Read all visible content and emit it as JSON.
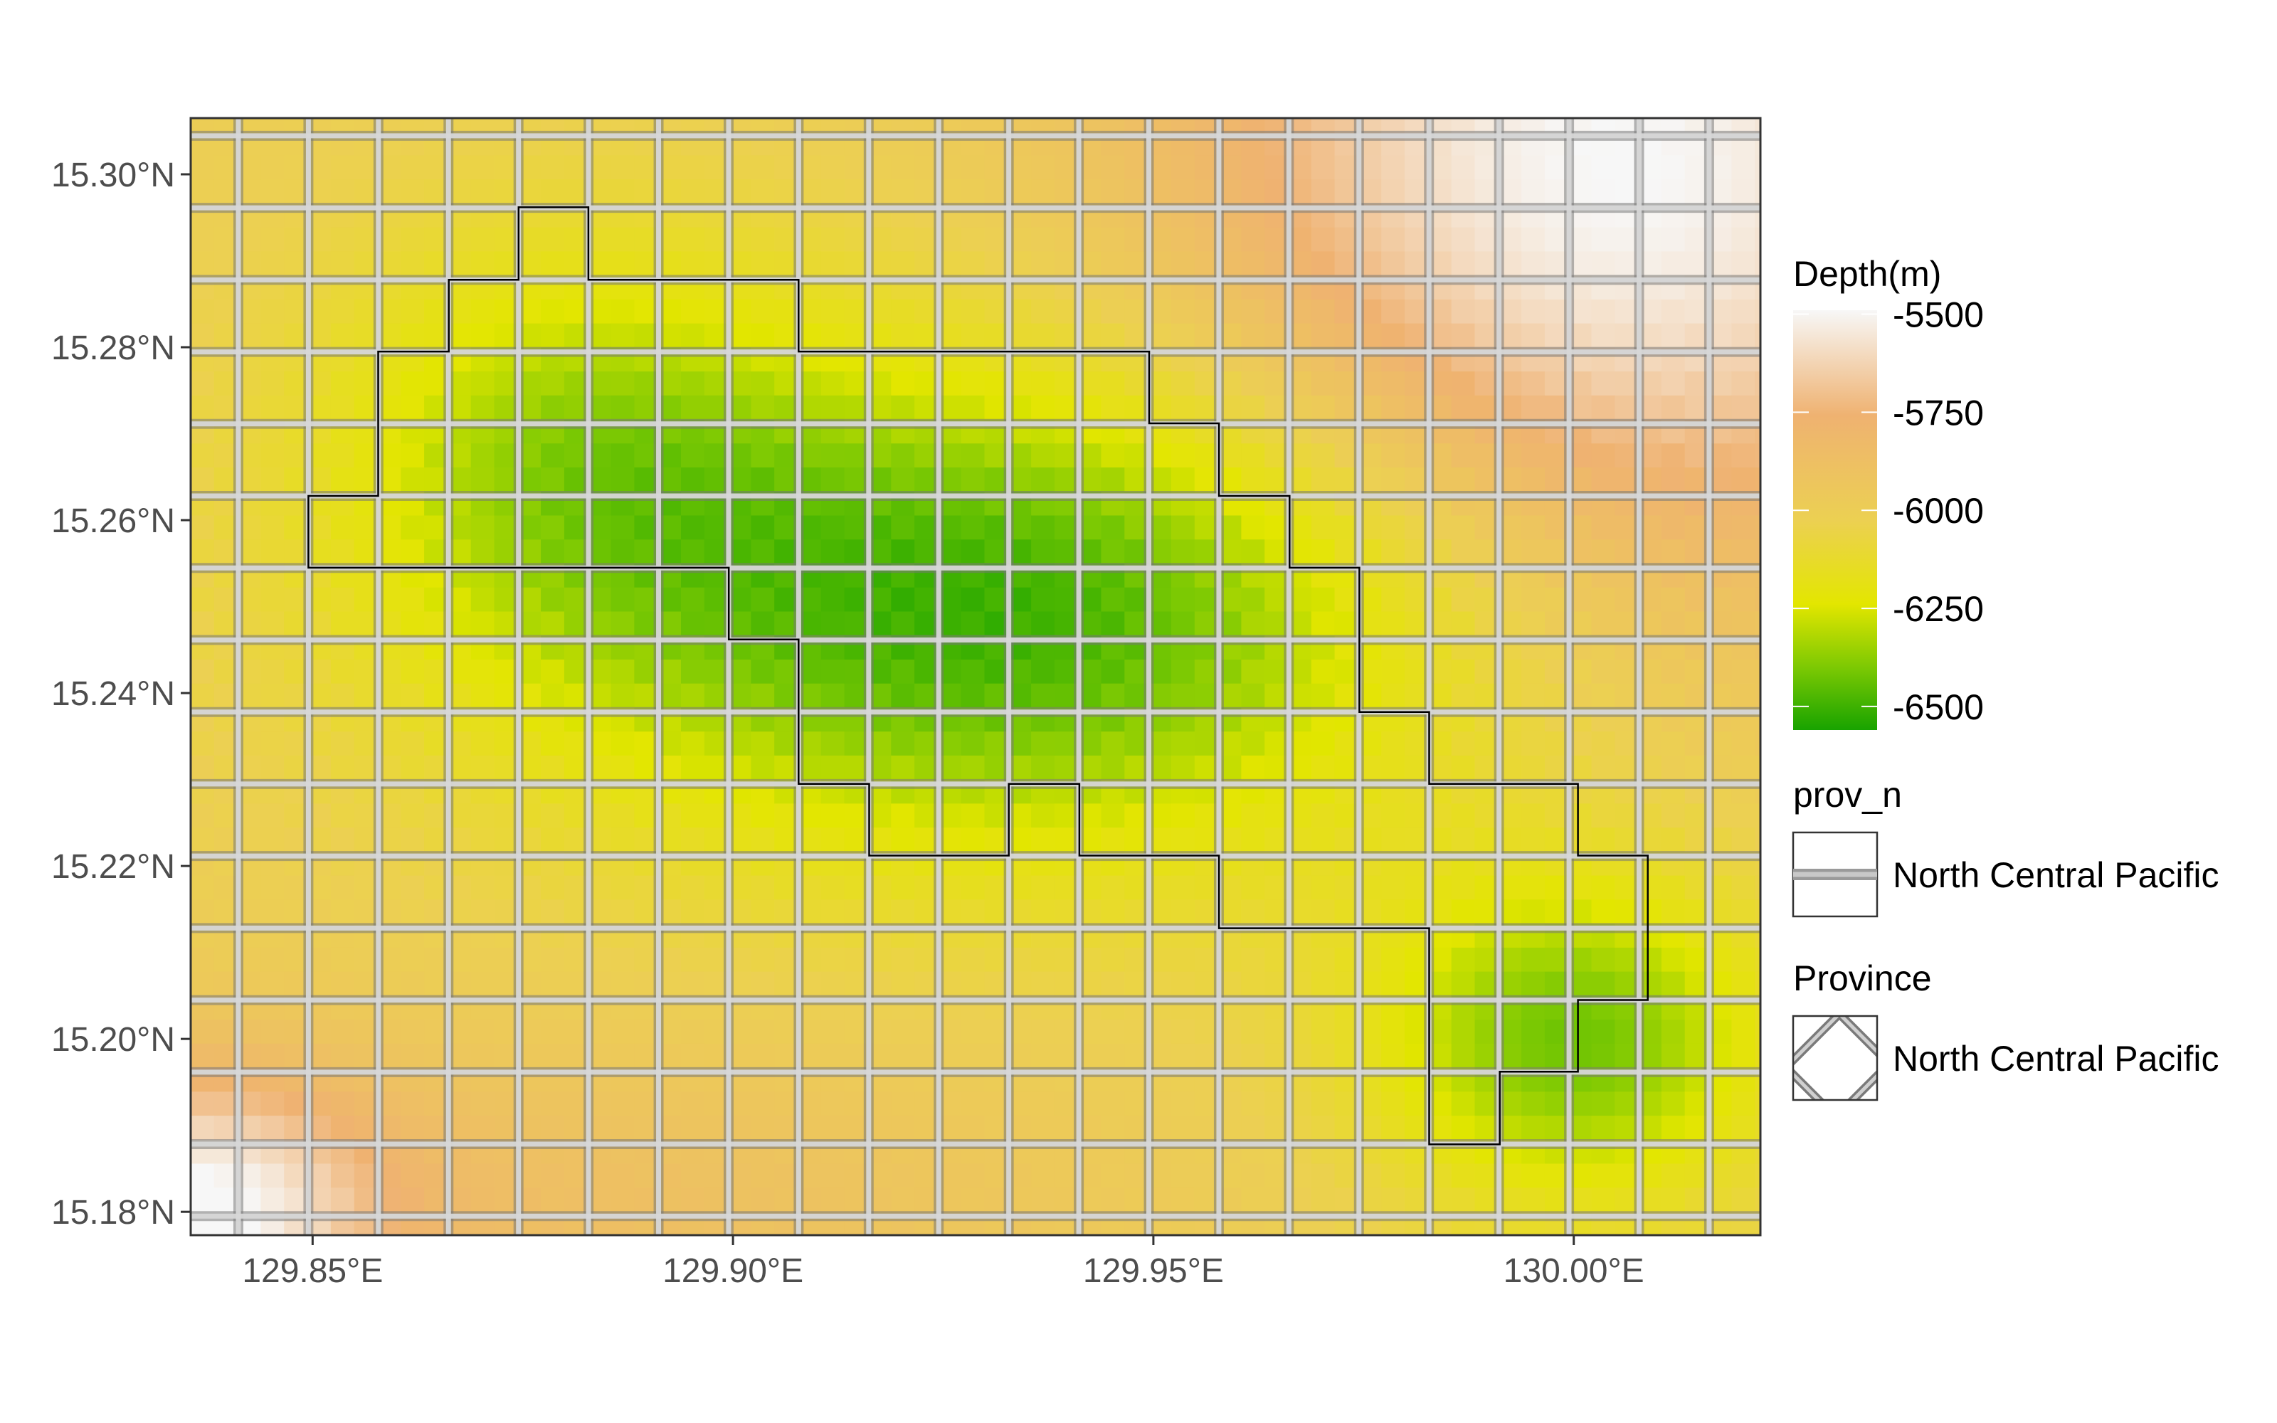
{
  "chart_data": {
    "type": "heatmap",
    "subtype": "raster-map",
    "x_ticks": [
      129.85,
      129.9,
      129.95,
      130.0
    ],
    "x_tick_labels": [
      "129.85°E",
      "129.90°E",
      "129.95°E",
      "130.00°E"
    ],
    "y_ticks": [
      15.18,
      15.2,
      15.22,
      15.24,
      15.26,
      15.28,
      15.3
    ],
    "y_tick_labels": [
      "15.18°N",
      "15.20°N",
      "15.22°N",
      "15.24°N",
      "15.26°N",
      "15.28°N",
      "15.30°N"
    ],
    "xlim": [
      129.8355,
      130.0222
    ],
    "ylim": [
      15.1773,
      15.3065
    ],
    "grid_cell_deg": 0.00833,
    "fill_legend": {
      "title": "Depth(m)",
      "breaks": [
        -5500,
        -5750,
        -6000,
        -6250,
        -6500
      ],
      "labels": [
        "-5500",
        "-5750",
        "-6000",
        "-6250",
        "-6500"
      ],
      "limits": [
        -6560,
        -5490
      ],
      "colors": [
        "#f7f7f7",
        "#efb271",
        "#ecd052",
        "#e3e600",
        "#7dc903",
        "#18a300"
      ]
    },
    "line_legend": {
      "title": "prov_n",
      "label": "North Central Pacific"
    },
    "pattern_legend": {
      "title": "Province",
      "label": "North Central Pacific"
    },
    "province_outline": [
      [
        129.8495,
        15.2545
      ],
      [
        129.8995,
        15.2545
      ],
      [
        129.8995,
        15.2462
      ],
      [
        129.9078,
        15.2462
      ],
      [
        129.9078,
        15.2295
      ],
      [
        129.9162,
        15.2295
      ],
      [
        129.9162,
        15.2212
      ],
      [
        129.9328,
        15.2212
      ],
      [
        129.9328,
        15.2295
      ],
      [
        129.9412,
        15.2295
      ],
      [
        129.9412,
        15.2212
      ],
      [
        129.9578,
        15.2212
      ],
      [
        129.9578,
        15.2128
      ],
      [
        129.9828,
        15.2128
      ],
      [
        129.9828,
        15.1878
      ],
      [
        129.9912,
        15.1878
      ],
      [
        129.9912,
        15.1962
      ],
      [
        130.0005,
        15.1962
      ],
      [
        130.0005,
        15.2045
      ],
      [
        130.0088,
        15.2045
      ],
      [
        130.0088,
        15.2212
      ],
      [
        130.0005,
        15.2212
      ],
      [
        130.0005,
        15.2295
      ],
      [
        129.9828,
        15.2295
      ],
      [
        129.9828,
        15.2378
      ],
      [
        129.9745,
        15.2378
      ],
      [
        129.9745,
        15.2545
      ],
      [
        129.9662,
        15.2545
      ],
      [
        129.9662,
        15.2628
      ],
      [
        129.9578,
        15.2628
      ],
      [
        129.9578,
        15.2712
      ],
      [
        129.9495,
        15.2712
      ],
      [
        129.9495,
        15.2795
      ],
      [
        129.9078,
        15.2795
      ],
      [
        129.9078,
        15.2878
      ],
      [
        129.8828,
        15.2878
      ],
      [
        129.8828,
        15.2962
      ],
      [
        129.8745,
        15.2962
      ],
      [
        129.8745,
        15.2878
      ],
      [
        129.8662,
        15.2878
      ],
      [
        129.8662,
        15.2795
      ],
      [
        129.8578,
        15.2795
      ],
      [
        129.8578,
        15.2628
      ],
      [
        129.8495,
        15.2628
      ]
    ]
  }
}
